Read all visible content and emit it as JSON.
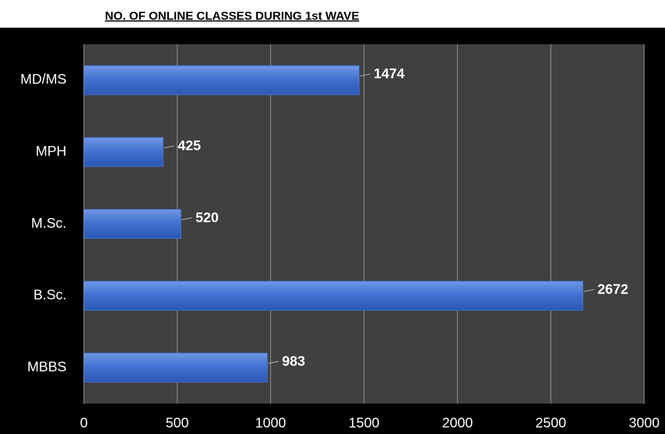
{
  "chart_data": {
    "type": "bar",
    "orientation": "horizontal",
    "title": "NO. OF ONLINE CLASSES DURING 1st WAVE",
    "categories": [
      "MBBS",
      "B.Sc.",
      "M.Sc.",
      "MPH",
      "MD/MS"
    ],
    "values": [
      983,
      2672,
      520,
      425,
      1474
    ],
    "color": "#3f6fd0",
    "xlim": [
      0,
      3000
    ],
    "xticks": [
      0,
      500,
      1000,
      1500,
      2000,
      2500,
      3000
    ],
    "grid": true
  }
}
